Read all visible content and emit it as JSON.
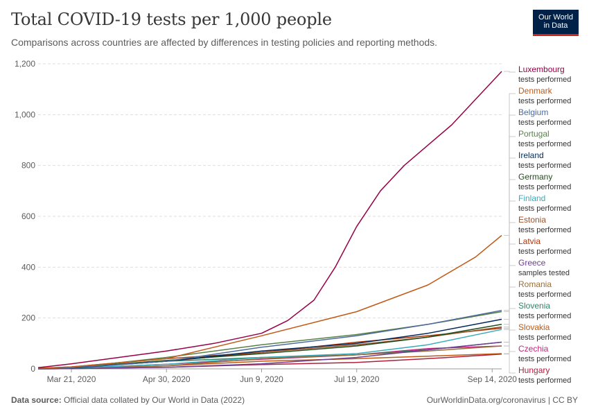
{
  "header": {
    "title": "Total COVID-19 tests per 1,000 people",
    "subtitle": "Comparisons across countries are affected by differences in testing policies and reporting methods.",
    "logo_line1": "Our World",
    "logo_line2": "in Data"
  },
  "footer": {
    "source_label": "Data source:",
    "source_text": "Official data collated by Our World in Data (2022)",
    "link": "OurWorldinData.org/coronavirus | CC BY"
  },
  "colors": {
    "grid": "#dddddd",
    "axis": "#666666",
    "text": "#5b5b5b",
    "brand": "#002147",
    "accent": "#ce261e"
  },
  "chart_data": {
    "type": "line",
    "title": "Total COVID-19 tests per 1,000 people",
    "ylim": [
      0,
      1200
    ],
    "yticks": [
      0,
      200,
      400,
      600,
      800,
      1000,
      1200
    ],
    "ytick_labels": [
      "0",
      "200",
      "400",
      "600",
      "800",
      "1,000",
      "1,200"
    ],
    "x_range": [
      "2020-03-07",
      "2020-09-18"
    ],
    "xticks": [
      "2020-03-21",
      "2020-04-30",
      "2020-06-09",
      "2020-07-19",
      "2020-09-14"
    ],
    "xtick_labels": [
      "Mar 21, 2020",
      "Apr 30, 2020",
      "Jun 9, 2020",
      "Jul 19, 2020",
      "Sep 14, 2020"
    ],
    "grid": "horizontal dashed",
    "legend_placement": "right",
    "series": [
      {
        "name": "Luxembourg",
        "sublabel": "tests performed",
        "color": "#970046",
        "x": [
          "2020-03-07",
          "2020-03-21",
          "2020-04-10",
          "2020-04-30",
          "2020-05-20",
          "2020-06-09",
          "2020-06-20",
          "2020-07-01",
          "2020-07-10",
          "2020-07-19",
          "2020-07-29",
          "2020-08-08",
          "2020-08-18",
          "2020-08-28",
          "2020-09-07",
          "2020-09-18"
        ],
        "y": [
          5,
          20,
          45,
          70,
          100,
          140,
          190,
          270,
          400,
          560,
          700,
          800,
          880,
          960,
          1060,
          1170
        ]
      },
      {
        "name": "Denmark",
        "sublabel": "tests performed",
        "color": "#c05917",
        "x": [
          "2020-03-07",
          "2020-03-21",
          "2020-04-30",
          "2020-06-09",
          "2020-07-19",
          "2020-08-18",
          "2020-09-07",
          "2020-09-18"
        ],
        "y": [
          2,
          8,
          40,
          130,
          225,
          330,
          440,
          525
        ]
      },
      {
        "name": "Belgium",
        "sublabel": "tests performed",
        "color": "#4c6a9c",
        "x": [
          "2020-03-07",
          "2020-03-21",
          "2020-04-30",
          "2020-06-09",
          "2020-07-19",
          "2020-08-18",
          "2020-09-18"
        ],
        "y": [
          1,
          5,
          30,
          85,
          130,
          175,
          230
        ]
      },
      {
        "name": "Portugal",
        "sublabel": "tests performed",
        "color": "#578145",
        "x": [
          "2020-03-07",
          "2020-03-21",
          "2020-04-30",
          "2020-06-09",
          "2020-07-19",
          "2020-08-18",
          "2020-09-18"
        ],
        "y": [
          1,
          4,
          45,
          95,
          135,
          175,
          225
        ]
      },
      {
        "name": "Ireland",
        "sublabel": "tests performed",
        "color": "#00295b",
        "x": [
          "2020-03-07",
          "2020-03-21",
          "2020-04-30",
          "2020-06-09",
          "2020-07-19",
          "2020-08-18",
          "2020-09-18"
        ],
        "y": [
          1,
          3,
          30,
          70,
          100,
          140,
          195
        ]
      },
      {
        "name": "Germany",
        "sublabel": "tests performed",
        "color": "#1f4e1a",
        "x": [
          "2020-03-07",
          "2020-03-21",
          "2020-04-30",
          "2020-06-09",
          "2020-07-19",
          "2020-08-18",
          "2020-09-18"
        ],
        "y": [
          1,
          6,
          33,
          60,
          90,
          125,
          175
        ]
      },
      {
        "name": "Finland",
        "sublabel": "tests performed",
        "color": "#38aaba",
        "x": [
          "2020-03-07",
          "2020-03-21",
          "2020-04-30",
          "2020-06-09",
          "2020-07-19",
          "2020-08-18",
          "2020-09-18"
        ],
        "y": [
          1,
          3,
          18,
          45,
          60,
          95,
          155
        ]
      },
      {
        "name": "Estonia",
        "sublabel": "tests performed",
        "color": "#9a5129",
        "x": [
          "2020-03-07",
          "2020-03-21",
          "2020-04-30",
          "2020-06-09",
          "2020-07-19",
          "2020-08-18",
          "2020-09-18"
        ],
        "y": [
          2,
          8,
          40,
          65,
          95,
          125,
          165
        ]
      },
      {
        "name": "Latvia",
        "sublabel": "tests performed",
        "color": "#b13507",
        "x": [
          "2020-03-07",
          "2020-03-21",
          "2020-04-30",
          "2020-06-09",
          "2020-07-19",
          "2020-08-18",
          "2020-09-18"
        ],
        "y": [
          1,
          5,
          30,
          65,
          105,
          130,
          160
        ]
      },
      {
        "name": "Greece",
        "sublabel": "samples tested",
        "color": "#6d3e91",
        "x": [
          "2020-03-07",
          "2020-03-21",
          "2020-04-30",
          "2020-06-09",
          "2020-07-19",
          "2020-08-18",
          "2020-09-18"
        ],
        "y": [
          0,
          1,
          6,
          20,
          45,
          75,
          105
        ]
      },
      {
        "name": "Romania",
        "sublabel": "tests performed",
        "color": "#996d39",
        "x": [
          "2020-03-07",
          "2020-03-21",
          "2020-04-30",
          "2020-06-09",
          "2020-07-19",
          "2020-08-18",
          "2020-09-18"
        ],
        "y": [
          0,
          1,
          12,
          40,
          55,
          70,
          90
        ]
      },
      {
        "name": "Slovenia",
        "sublabel": "tests performed",
        "color": "#2c8465",
        "x": [
          "2020-03-07",
          "2020-03-21",
          "2020-04-30",
          "2020-06-09",
          "2020-07-19",
          "2020-08-18",
          "2020-09-18"
        ],
        "y": [
          1,
          5,
          30,
          45,
          55,
          75,
          105
        ]
      },
      {
        "name": "Slovakia",
        "sublabel": "tests performed",
        "color": "#be5915",
        "x": [
          "2020-03-07",
          "2020-03-21",
          "2020-04-30",
          "2020-06-09",
          "2020-07-19",
          "2020-08-18",
          "2020-09-18"
        ],
        "y": [
          0,
          1,
          12,
          30,
          40,
          50,
          60
        ]
      },
      {
        "name": "Czechia",
        "sublabel": "tests performed",
        "color": "#c4267c",
        "x": [
          "2020-03-07",
          "2020-03-21",
          "2020-04-30",
          "2020-06-09",
          "2020-07-19",
          "2020-08-18",
          "2020-09-18"
        ],
        "y": [
          0,
          2,
          18,
          38,
          55,
          80,
          90
        ]
      },
      {
        "name": "Hungary",
        "sublabel": "tests performed",
        "color": "#b01e3c",
        "x": [
          "2020-03-07",
          "2020-03-21",
          "2020-04-30",
          "2020-06-09",
          "2020-07-19",
          "2020-08-18",
          "2020-09-18"
        ],
        "y": [
          0,
          1,
          6,
          17,
          25,
          40,
          58
        ]
      }
    ]
  }
}
